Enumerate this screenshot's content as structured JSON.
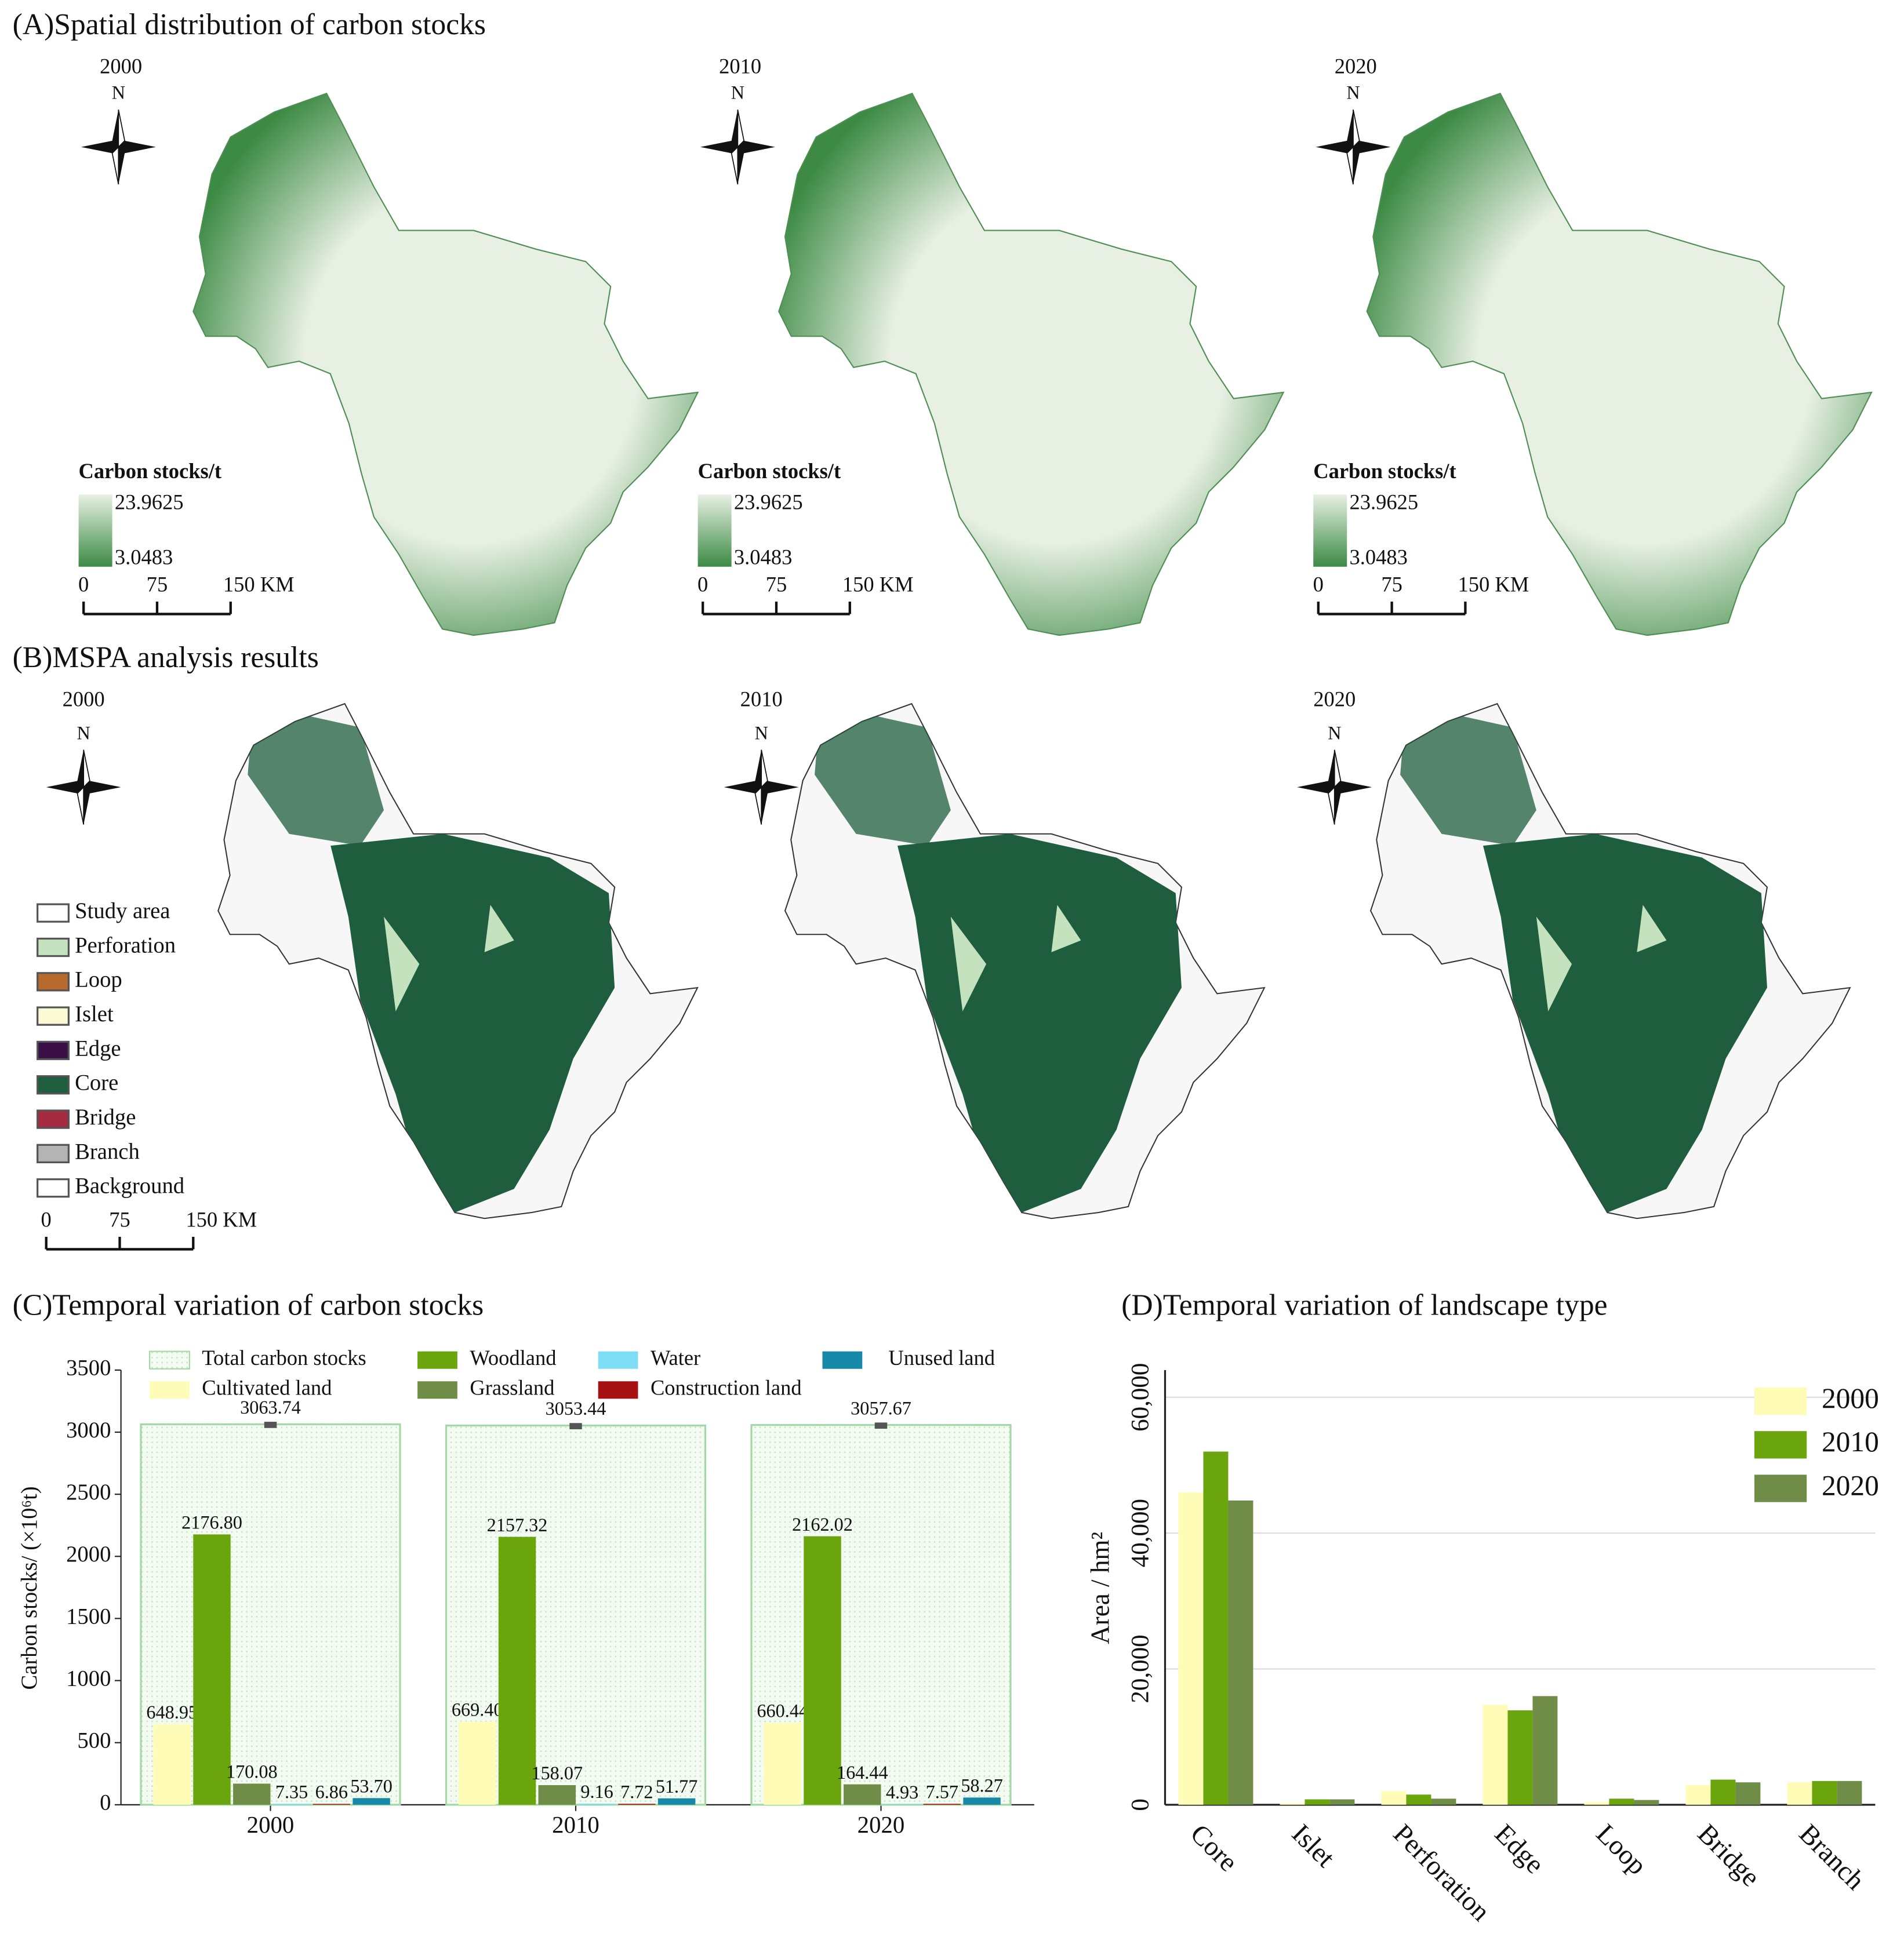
{
  "panel_a": {
    "title": "(A)Spatial distribution of carbon stocks",
    "years": [
      "2000",
      "2010",
      "2020"
    ],
    "north": "N",
    "legend_title": "Carbon stocks/t",
    "legend_max": 23.9625,
    "legend_min": 3.0483,
    "colors": [
      "#e8f0e4",
      "#3c8a44"
    ],
    "scale_labels": [
      0,
      75,
      "150 KM"
    ]
  },
  "panel_b": {
    "title": "(B)MSPA analysis results",
    "years": [
      "2000",
      "2010",
      "2020"
    ],
    "north": "N",
    "legend": [
      {
        "name": "Study area",
        "color": "#ffffff"
      },
      {
        "name": "Perforation",
        "color": "#c4e2bd"
      },
      {
        "name": "Loop",
        "color": "#b86a2e"
      },
      {
        "name": "Islet",
        "color": "#fafad4"
      },
      {
        "name": "Edge",
        "color": "#3a1046"
      },
      {
        "name": "Core",
        "color": "#1e5e3e"
      },
      {
        "name": "Bridge",
        "color": "#a52a42"
      },
      {
        "name": "Branch",
        "color": "#b4b4b4"
      },
      {
        "name": "Background",
        "color": "#ffffff"
      }
    ],
    "scale_labels": [
      0,
      75,
      "150 KM"
    ]
  },
  "chart_data": [
    {
      "type": "bar",
      "title": "(C)Temporal variation of carbon stocks",
      "y_label": "Carbon stocks/ (×10⁶t)",
      "categories": [
        "2000",
        "2010",
        "2020"
      ],
      "series": [
        {
          "name": "Total carbon stocks",
          "color": "#eef9ee",
          "values": [
            3063.74,
            3053.44,
            3057.67
          ],
          "value_labels": [
            "3063.74",
            "3053.44",
            "3057.67"
          ]
        },
        {
          "name": "Cultivated land",
          "color": "#fffcb8",
          "values": [
            648.95,
            669.4,
            660.44
          ],
          "value_labels": [
            "648.95",
            "669.40",
            "660.44"
          ]
        },
        {
          "name": "Woodland",
          "color": "#6aa50e",
          "values": [
            2176.8,
            2157.32,
            2162.02
          ],
          "value_labels": [
            "2176.80",
            "2157.32",
            "2162.02"
          ]
        },
        {
          "name": "Grassland",
          "color": "#708d48",
          "values": [
            170.08,
            158.07,
            164.44
          ],
          "value_labels": [
            "170.08",
            "158.07",
            "164.44"
          ]
        },
        {
          "name": "Water",
          "color": "#7fdcf5",
          "values": [
            7.35,
            9.16,
            4.93
          ],
          "value_labels": [
            "7.35",
            "9.16",
            "4.93"
          ]
        },
        {
          "name": "Construction land",
          "color": "#a61010",
          "values": [
            6.86,
            7.72,
            7.57
          ],
          "value_labels": [
            "6.86",
            "7.72",
            "7.57"
          ]
        },
        {
          "name": "Unused land",
          "color": "#1788a8",
          "values": [
            53.7,
            51.77,
            58.27
          ],
          "value_labels": [
            "53.70",
            "51.77",
            "58.27"
          ]
        }
      ],
      "ylim": [
        0,
        3500
      ],
      "yticks": [
        0,
        500,
        1000,
        1500,
        2000,
        2500,
        3000,
        3500
      ]
    },
    {
      "type": "bar",
      "title": "(D)Temporal variation of landscape type",
      "y_label": "Area / hm²",
      "categories": [
        "Core",
        "Islet",
        "Perforation",
        "Edge",
        "Loop",
        "Bridge",
        "Branch"
      ],
      "series": [
        {
          "name": "2000",
          "color": "#fffcb8",
          "values": [
            46000,
            200,
            2000,
            14700,
            400,
            2900,
            3300
          ]
        },
        {
          "name": "2010",
          "color": "#6aa50e",
          "values": [
            52000,
            800,
            1500,
            13900,
            900,
            3700,
            3500
          ]
        },
        {
          "name": "2020",
          "color": "#708d48",
          "values": [
            44800,
            800,
            900,
            16000,
            700,
            3300,
            3500
          ]
        }
      ],
      "ylim": [
        0,
        64000
      ],
      "yticks": [
        0,
        {
          "value": 20000,
          "label": "20,000"
        },
        {
          "value": 40000,
          "label": "40,000"
        },
        {
          "value": 60000,
          "label": "60,000"
        }
      ],
      "grid": true,
      "legend": "upper right"
    }
  ]
}
